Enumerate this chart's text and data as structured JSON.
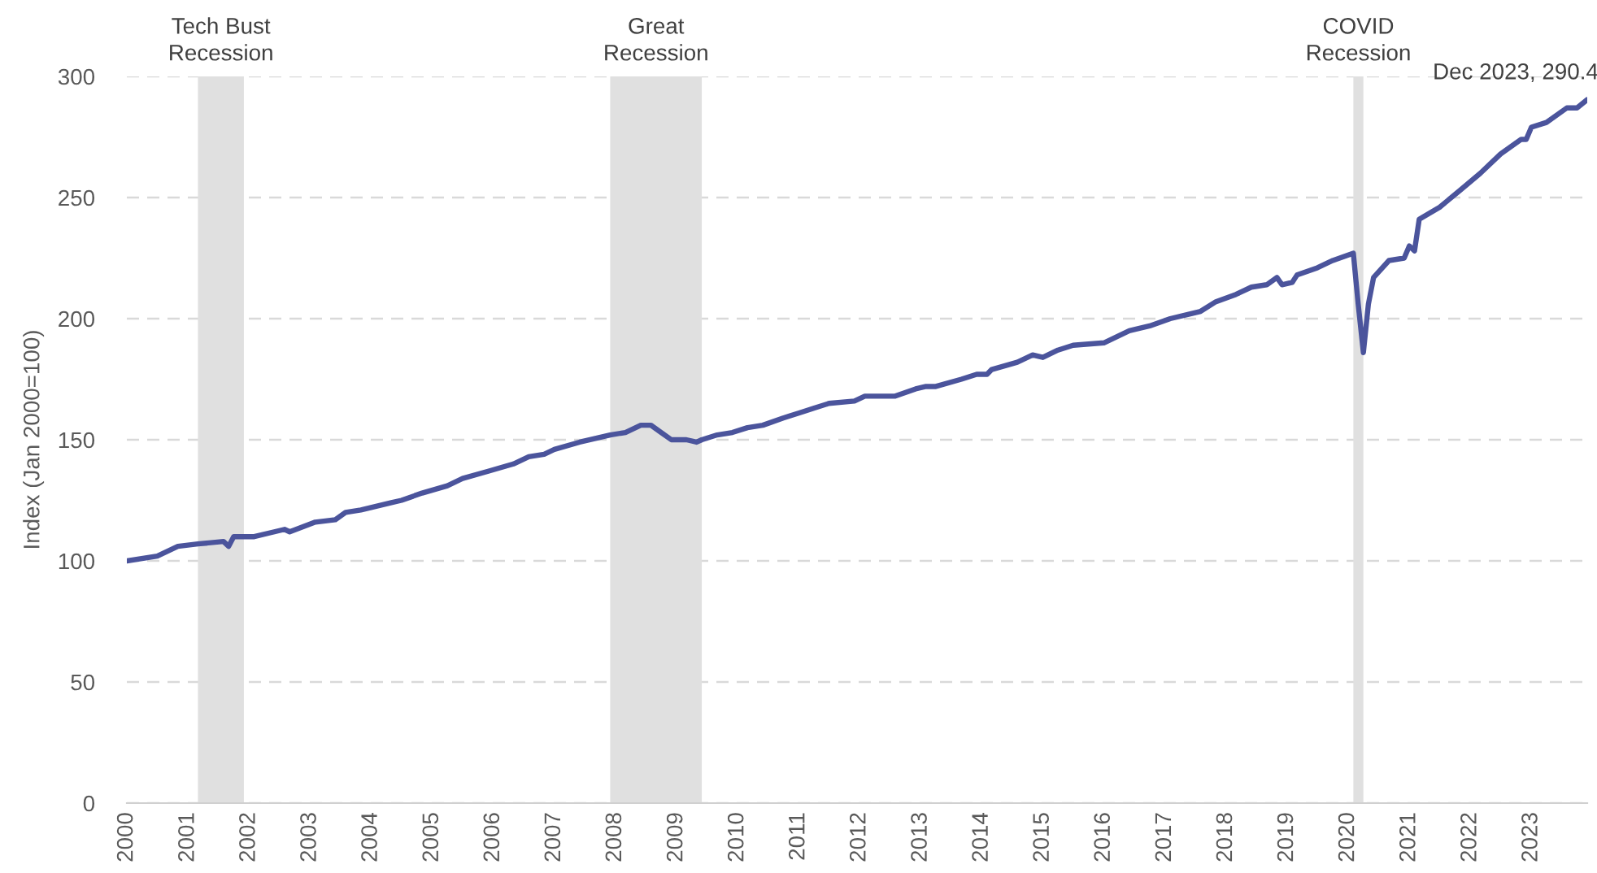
{
  "chart_data": {
    "type": "line",
    "ylabel": "Index (Jan 2000=100)",
    "x": [
      "2000-01",
      "2000-07",
      "2000-11",
      "2001-03",
      "2001-08",
      "2001-09",
      "2001-10",
      "2002-02",
      "2002-06",
      "2002-08",
      "2002-09",
      "2003-02",
      "2003-06",
      "2003-08",
      "2003-11",
      "2004-05",
      "2004-07",
      "2004-11",
      "2005-04",
      "2005-07",
      "2005-12",
      "2006-05",
      "2006-08",
      "2006-11",
      "2007-01",
      "2007-06",
      "2007-12",
      "2008-03",
      "2008-06",
      "2008-08",
      "2008-10",
      "2008-12",
      "2009-03",
      "2009-05",
      "2009-06",
      "2009-09",
      "2009-12",
      "2010-03",
      "2010-06",
      "2010-10",
      "2011-01",
      "2011-04",
      "2011-07",
      "2011-12",
      "2012-02",
      "2012-05",
      "2012-08",
      "2012-12",
      "2013-02",
      "2013-04",
      "2013-09",
      "2013-12",
      "2014-02",
      "2014-03",
      "2014-08",
      "2014-11",
      "2015-01",
      "2015-04",
      "2015-07",
      "2016-01",
      "2016-06",
      "2016-10",
      "2017-02",
      "2017-06",
      "2017-08",
      "2017-11",
      "2018-03",
      "2018-06",
      "2018-09",
      "2018-11",
      "2018-12",
      "2019-02",
      "2019-03",
      "2019-07",
      "2019-10",
      "2020-02",
      "2020-03",
      "2020-04",
      "2020-05",
      "2020-06",
      "2020-09",
      "2020-12",
      "2021-01",
      "2021-02",
      "2021-03",
      "2021-07",
      "2021-11",
      "2022-03",
      "2022-07",
      "2022-11",
      "2022-12",
      "2023-01",
      "2023-04",
      "2023-08",
      "2023-10",
      "2023-12"
    ],
    "series": [
      {
        "color": "#4b549c",
        "values": [
          100,
          102,
          106,
          107,
          108,
          106,
          110,
          110,
          112,
          113,
          112,
          116,
          117,
          120,
          121,
          124,
          125,
          128,
          131,
          134,
          137,
          140,
          143,
          144,
          146,
          149,
          152,
          153,
          156,
          156,
          153,
          150,
          150,
          149,
          150,
          152,
          153,
          155,
          156,
          159,
          161,
          163,
          165,
          166,
          168,
          168,
          168,
          171,
          172,
          172,
          175,
          177,
          177,
          179,
          182,
          185,
          184,
          187,
          189,
          190,
          195,
          197,
          200,
          202,
          203,
          207,
          210,
          213,
          214,
          217,
          214,
          215,
          218,
          221,
          224,
          227,
          206,
          186,
          206,
          217,
          224,
          225,
          230,
          228,
          241,
          246,
          253,
          260,
          268,
          274,
          274,
          279,
          281,
          287,
          287,
          290.4
        ]
      }
    ],
    "xlim": [
      "2000-01",
      "2023-12"
    ],
    "xticks": [
      {
        "value": "2000-01",
        "label": "2000"
      },
      {
        "value": "2001-01",
        "label": "2001"
      },
      {
        "value": "2002-01",
        "label": "2002"
      },
      {
        "value": "2003-01",
        "label": "2003"
      },
      {
        "value": "2004-01",
        "label": "2004"
      },
      {
        "value": "2005-01",
        "label": "2005"
      },
      {
        "value": "2006-01",
        "label": "2006"
      },
      {
        "value": "2007-01",
        "label": "2007"
      },
      {
        "value": "2008-01",
        "label": "2008"
      },
      {
        "value": "2009-01",
        "label": "2009"
      },
      {
        "value": "2010-01",
        "label": "2010"
      },
      {
        "value": "2011-01",
        "label": "2011"
      },
      {
        "value": "2012-01",
        "label": "2012"
      },
      {
        "value": "2013-01",
        "label": "2013"
      },
      {
        "value": "2014-01",
        "label": "2014"
      },
      {
        "value": "2015-01",
        "label": "2015"
      },
      {
        "value": "2016-01",
        "label": "2016"
      },
      {
        "value": "2017-01",
        "label": "2017"
      },
      {
        "value": "2018-01",
        "label": "2018"
      },
      {
        "value": "2019-01",
        "label": "2019"
      },
      {
        "value": "2020-01",
        "label": "2020"
      },
      {
        "value": "2021-01",
        "label": "2021"
      },
      {
        "value": "2022-01",
        "label": "2022"
      },
      {
        "value": "2023-01",
        "label": "2023"
      }
    ],
    "ylim": [
      0,
      300
    ],
    "yticks": [
      0,
      50,
      100,
      150,
      200,
      250,
      300
    ],
    "grid": "y",
    "line_style": "solid",
    "bands": [
      {
        "axis": "x",
        "from": "2001-03",
        "to": "2001-12",
        "label": "Tech Bust\nRecession",
        "color": "#e0e0e0"
      },
      {
        "axis": "x",
        "from": "2007-12",
        "to": "2009-06",
        "label": "Great\nRecession",
        "color": "#e0e0e0"
      },
      {
        "axis": "x",
        "from": "2020-02",
        "to": "2020-04",
        "label": "COVID\nRecession",
        "color": "#e0e0e0"
      }
    ],
    "annotations": [
      {
        "text": "Dec 2023, 290.4",
        "x": "2023-12",
        "y": 290.4
      }
    ]
  }
}
